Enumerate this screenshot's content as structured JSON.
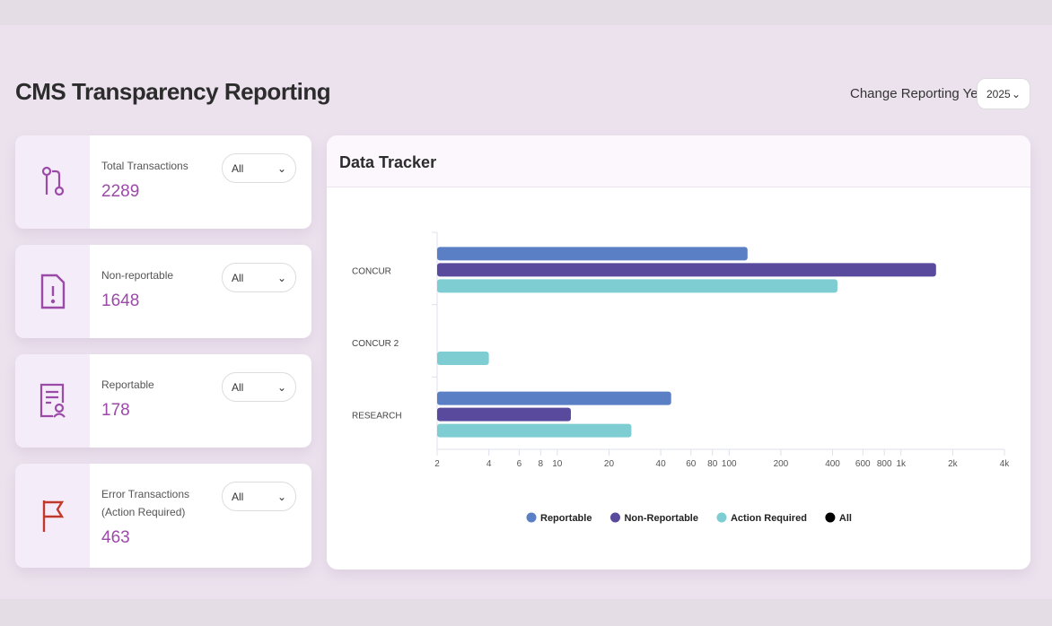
{
  "header": {
    "title": "CMS Transparency Reporting",
    "year_label": "Change Reporting Year",
    "year_value": "2025"
  },
  "cards": [
    {
      "label": "Total Transactions",
      "value": "2289",
      "filter": "All",
      "icon": "git-pull-icon"
    },
    {
      "label": "Non-reportable",
      "value": "1648",
      "filter": "All",
      "icon": "file-alert-icon"
    },
    {
      "label": "Reportable",
      "value": "178",
      "filter": "All",
      "icon": "certificate-icon"
    },
    {
      "label": "Error Transactions",
      "label2": "(Action Required)",
      "value": "463",
      "filter": "All",
      "icon": "flag-icon"
    }
  ],
  "panel": {
    "title": "Data Tracker"
  },
  "chart_data": {
    "type": "bar",
    "orientation": "horizontal",
    "xscale": "log",
    "xlim": [
      2,
      4000
    ],
    "categories": [
      "CONCUR",
      "CONCUR 2",
      "RESEARCH"
    ],
    "ticks": [
      2,
      4,
      6,
      8,
      10,
      20,
      40,
      60,
      80,
      100,
      200,
      400,
      600,
      800,
      1000,
      2000,
      4000
    ],
    "tick_labels": [
      "2",
      "4",
      "6",
      "8",
      "10",
      "20",
      "40",
      "60",
      "80",
      "100",
      "200",
      "400",
      "600",
      "800",
      "1k",
      "2k",
      "4k"
    ],
    "series": [
      {
        "name": "Reportable",
        "color": "#5b7fc4",
        "values": [
          128,
          null,
          46
        ]
      },
      {
        "name": "Non-Reportable",
        "color": "#5a4a9e",
        "values": [
          1600,
          null,
          12
        ]
      },
      {
        "name": "Action Required",
        "color": "#7ecdd3",
        "values": [
          427,
          4,
          27
        ]
      },
      {
        "name": "All",
        "color": "#000000",
        "values": [
          null,
          null,
          null
        ]
      }
    ],
    "legend_position": "bottom"
  }
}
